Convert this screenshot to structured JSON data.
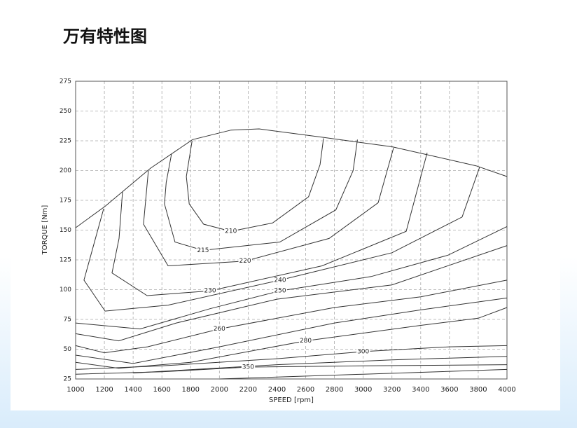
{
  "title": "万有特性图",
  "chart_data": {
    "type": "contour",
    "xlabel": "SPEED [rpm]",
    "ylabel": "TORQUE [Nm]",
    "xlim": [
      1000,
      4000
    ],
    "ylim": [
      25,
      275
    ],
    "xticks": [
      1000,
      1200,
      1400,
      1600,
      1800,
      2000,
      2200,
      2400,
      2600,
      2800,
      3000,
      3200,
      3400,
      3600,
      3800,
      4000
    ],
    "yticks": [
      25,
      50,
      75,
      100,
      125,
      150,
      175,
      200,
      225,
      250,
      275
    ],
    "grid": true,
    "color": "#333333",
    "series": [
      {
        "x": [
          1000,
          1205,
          1521,
          1813,
          2081,
          2276,
          2714,
          3200,
          3785,
          4000
        ],
        "y": [
          152,
          170,
          202,
          226,
          234,
          235,
          228,
          220,
          204,
          195
        ]
      },
      {
        "name": "210",
        "x": [
          1810,
          1770,
          1790,
          1890,
          2080,
          2370,
          2620,
          2700,
          2724
        ],
        "y": [
          225,
          195,
          172,
          155,
          149,
          156,
          178,
          205,
          227
        ]
      },
      {
        "name": "215",
        "x": [
          1667,
          1630,
          1618,
          1691,
          1886,
          2420,
          2810,
          2930,
          2960
        ],
        "y": [
          214,
          190,
          172,
          140,
          133,
          140,
          167,
          200,
          226
        ]
      },
      {
        "name": "220",
        "x": [
          1506,
          1472,
          1643,
          2179,
          2763,
          3104,
          3211
        ],
        "y": [
          200,
          155,
          120,
          124,
          143,
          173,
          219
        ]
      },
      {
        "name": "230",
        "x": [
          1326,
          1302,
          1253,
          1497,
          1935,
          2714,
          3299,
          3445
        ],
        "y": [
          182,
          143,
          114,
          95,
          99,
          120,
          149,
          215
        ]
      },
      {
        "name": "240",
        "x": [
          1195,
          1058,
          1205,
          1643,
          2422,
          3200,
          3688,
          3810
        ],
        "y": [
          168,
          108,
          82,
          87,
          108,
          131,
          161,
          203
        ]
      },
      {
        "name": "250",
        "x": [
          1000,
          1448,
          1935,
          2422,
          3055,
          3591,
          4000
        ],
        "y": [
          72,
          67,
          84,
          99,
          111,
          129,
          153
        ]
      },
      {
        "x": [
          1000,
          1300,
          1700,
          2400,
          3200,
          4000
        ],
        "y": [
          63,
          57,
          72,
          92,
          104,
          137
        ]
      },
      {
        "name": "260",
        "x": [
          1000,
          1200,
          1500,
          2000,
          2800,
          3400,
          4000
        ],
        "y": [
          53,
          47,
          52,
          67,
          85,
          94,
          108
        ]
      },
      {
        "x": [
          1000,
          1400,
          2000,
          2800,
          3400,
          4000
        ],
        "y": [
          45,
          38,
          52,
          72,
          83,
          93
        ]
      },
      {
        "name": "280",
        "x": [
          1000,
          1300,
          1800,
          2600,
          3400,
          3800,
          4000
        ],
        "y": [
          39,
          34,
          39,
          57,
          70,
          76,
          85
        ]
      },
      {
        "name": "300",
        "x": [
          1000,
          1600,
          2400,
          3000,
          3600,
          4000
        ],
        "y": [
          33,
          36,
          42,
          48,
          52,
          53
        ]
      },
      {
        "x": [
          1400,
          2400,
          3200,
          4000
        ],
        "y": [
          30,
          37,
          41,
          44
        ]
      },
      {
        "name": "350",
        "x": [
          1000,
          1600,
          2200,
          3000,
          4000
        ],
        "y": [
          29,
          31,
          35,
          36,
          37
        ]
      },
      {
        "x": [
          2000,
          3000,
          4000
        ],
        "y": [
          25,
          29,
          33
        ]
      }
    ]
  }
}
